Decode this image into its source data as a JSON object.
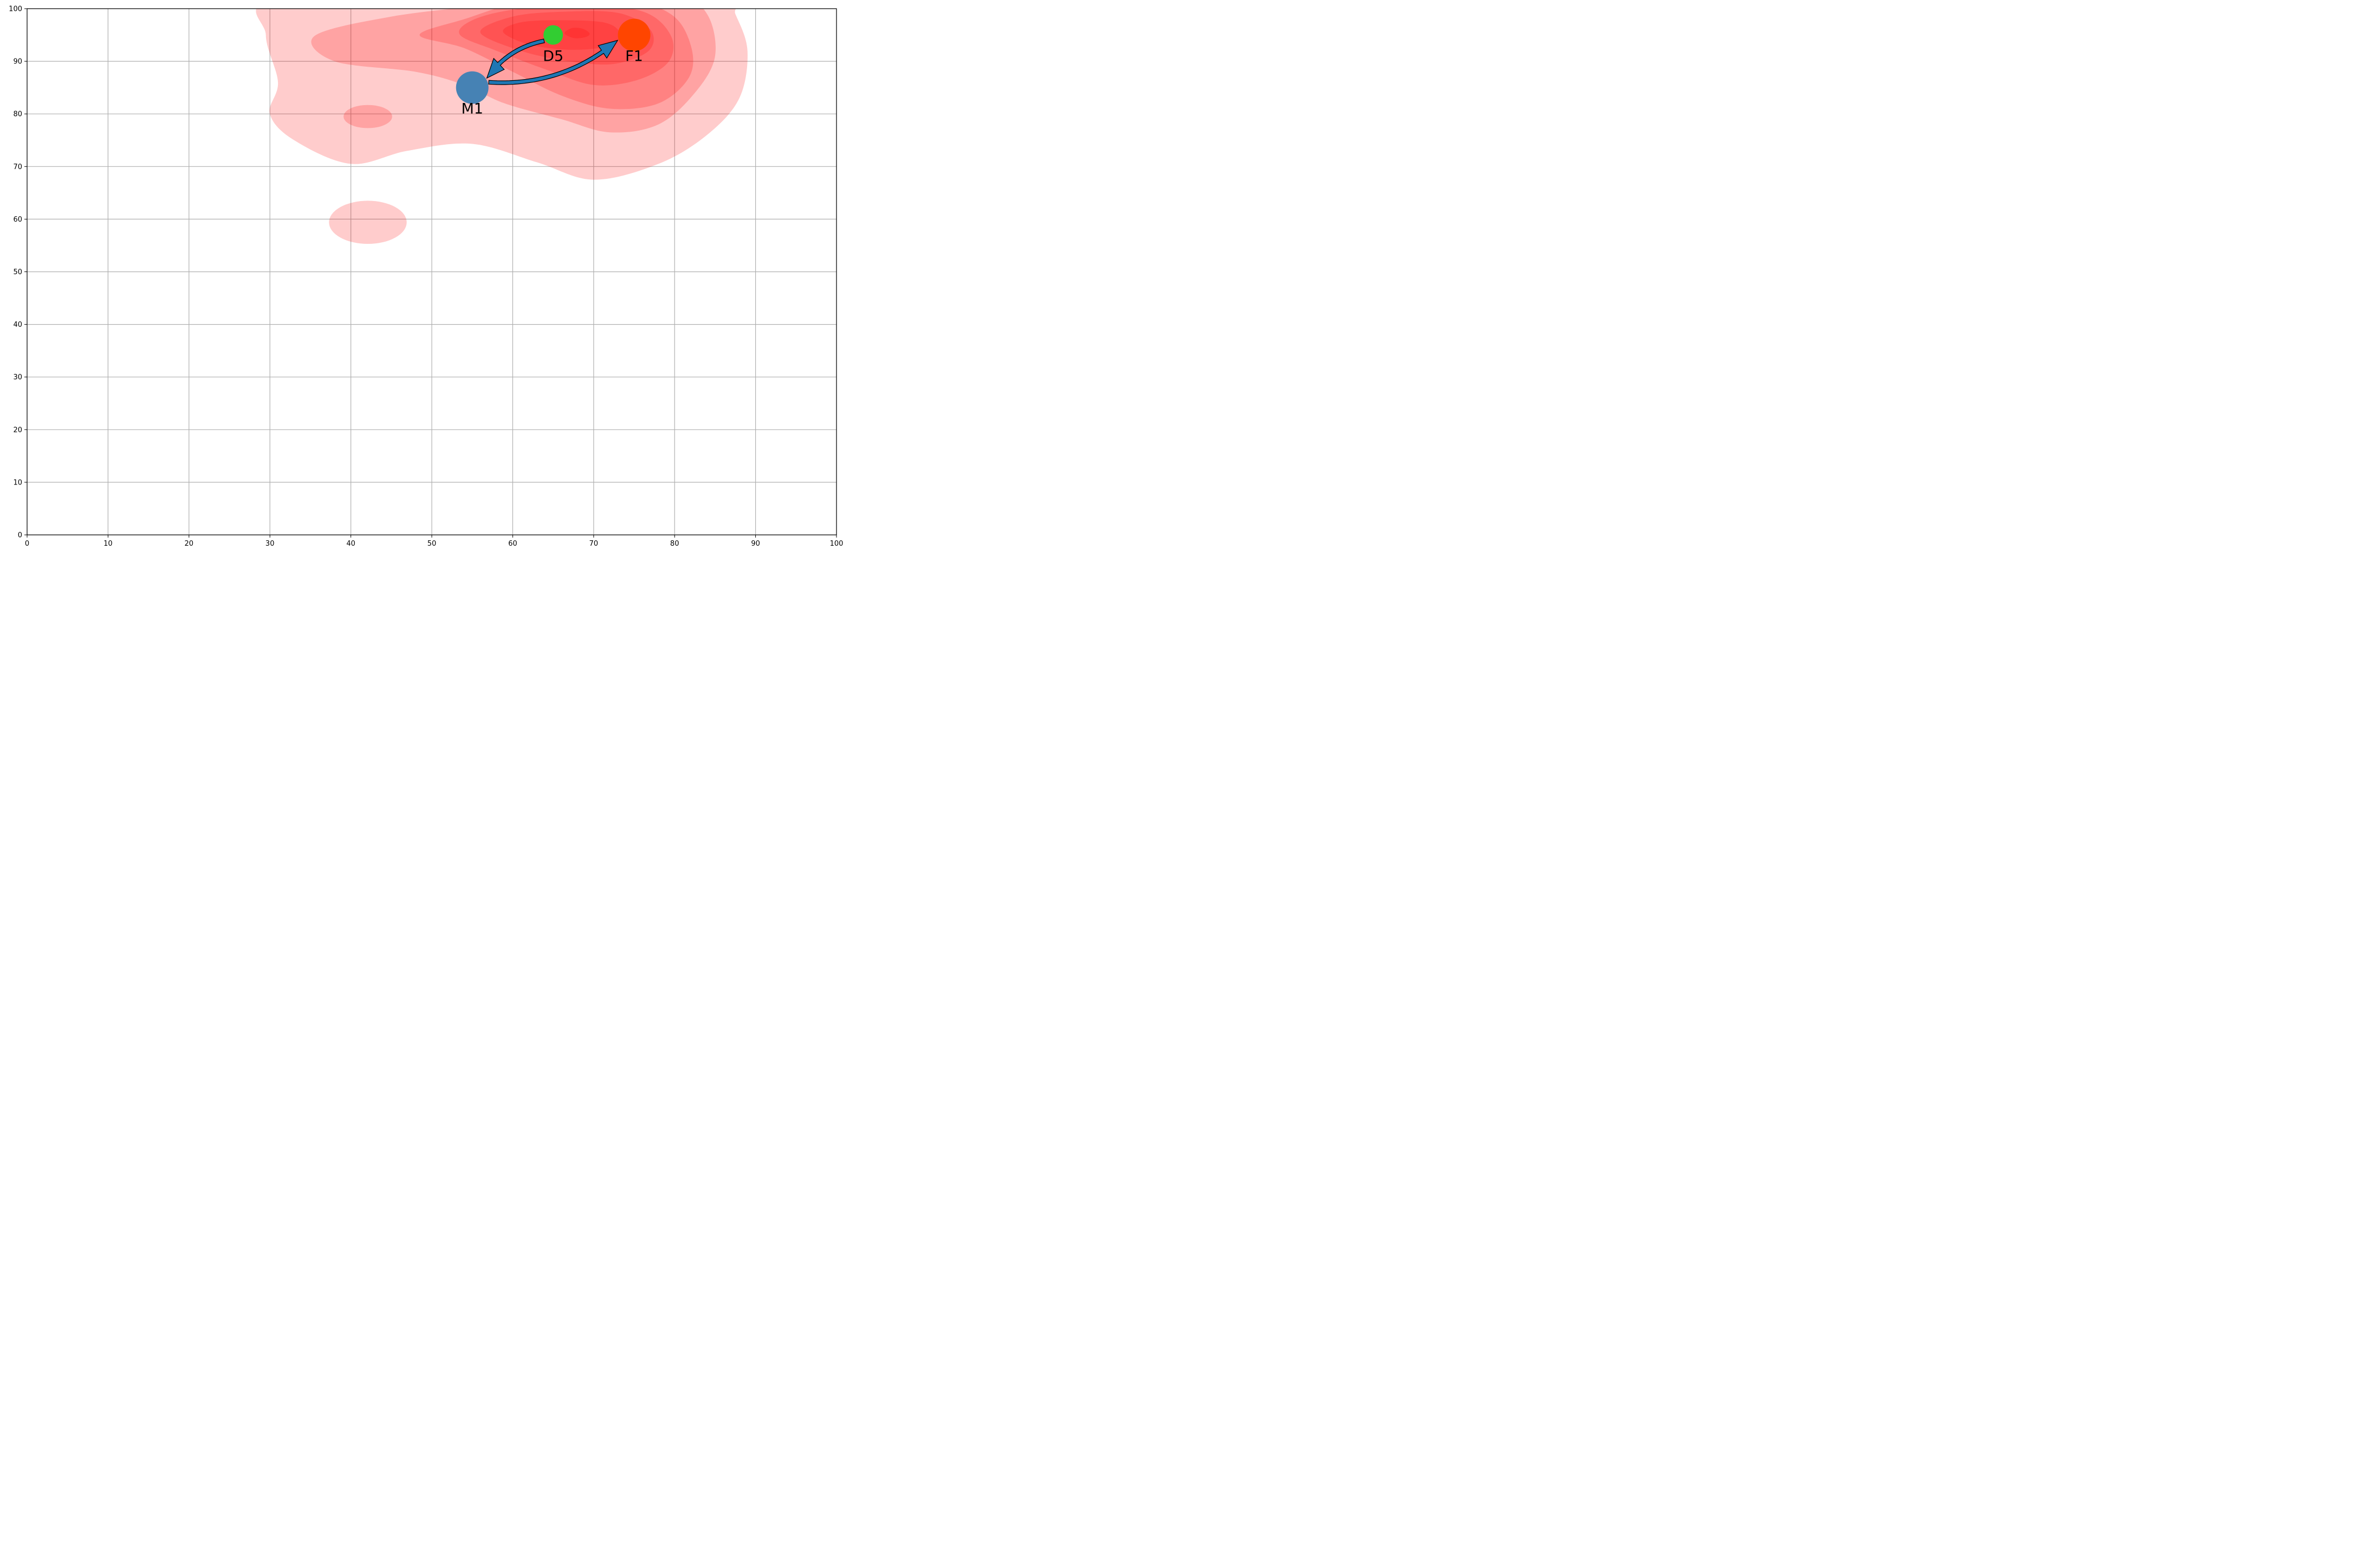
{
  "chart_data": {
    "type": "scatter",
    "xlim": [
      0,
      100
    ],
    "ylim": [
      0,
      100
    ],
    "x_ticks": [
      "0",
      "10",
      "20",
      "30",
      "40",
      "50",
      "60",
      "70",
      "80",
      "90",
      "100"
    ],
    "y_ticks": [
      "0",
      "10",
      "20",
      "30",
      "40",
      "50",
      "60",
      "70",
      "80",
      "90",
      "100"
    ],
    "grid": true,
    "points": [
      {
        "label": "M1",
        "x": 55,
        "y": 85,
        "color": "#4682b4",
        "size": "large"
      },
      {
        "label": "D5",
        "x": 65,
        "y": 95,
        "color": "#32cd32",
        "size": "small"
      },
      {
        "label": "F1",
        "x": 75,
        "y": 95,
        "color": "#ff4500",
        "size": "large"
      }
    ],
    "arrows": [
      {
        "from": "D5",
        "to": "M1",
        "color": "#1f77b4"
      },
      {
        "from": "M1",
        "to": "F1",
        "color": "#1f77b4"
      }
    ],
    "density_overlay": {
      "color": "#ff0000",
      "levels": 7,
      "peak": {
        "x": 68,
        "y": 95
      }
    }
  }
}
